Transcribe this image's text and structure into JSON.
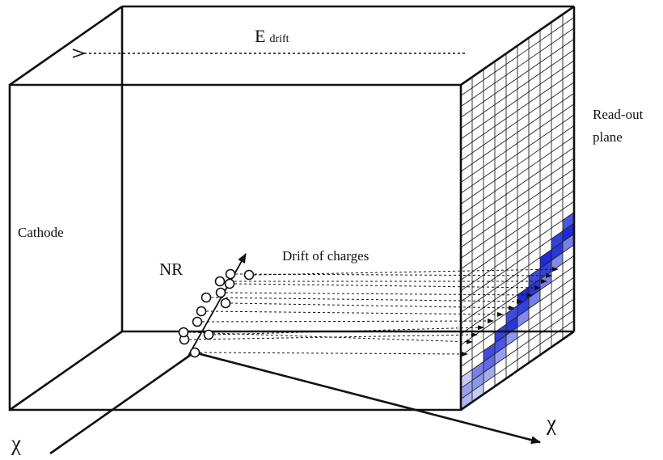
{
  "labels": {
    "e_field": "E",
    "e_field_sub": "drift",
    "readout": [
      "Read-out",
      "plane"
    ],
    "cathode": "Cathode",
    "nr": "NR",
    "drift_charges": "Drift of charges",
    "chi_in": "χ",
    "chi_out": "χ"
  },
  "colors": {
    "line": "#111111",
    "grid": "#222222",
    "hit_dark": "#1e2bd6",
    "hit_light": "#a9b4ee"
  },
  "grid": {
    "columns": 10,
    "rows": 30
  },
  "electron_count": 13
}
